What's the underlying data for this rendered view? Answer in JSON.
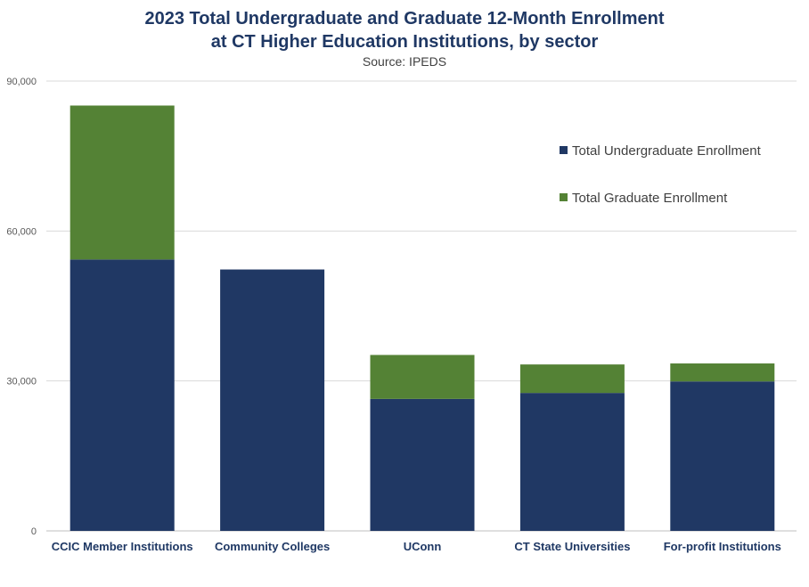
{
  "chart_data": {
    "type": "bar",
    "stacked": true,
    "title_lines": [
      "2023 Total Undergraduate and Graduate 12-Month Enrollment",
      "at CT Higher Education Institutions, by sector"
    ],
    "subtitle": "Source: IPEDS",
    "categories": [
      "CCIC Member Institutions",
      "Community Colleges",
      "UConn",
      "CT State Universities",
      "For-profit Institutions"
    ],
    "series": [
      {
        "name": "Total Undergraduate Enrollment",
        "color": "#203864",
        "values": [
          54300,
          52300,
          26400,
          27600,
          29900
        ]
      },
      {
        "name": "Total Graduate Enrollment",
        "color": "#548235",
        "values": [
          30800,
          0,
          8800,
          5700,
          3600
        ]
      }
    ],
    "ylim": [
      0,
      90000
    ],
    "yticks": [
      0,
      30000,
      60000,
      90000
    ],
    "ytick_labels": [
      "0",
      "30,000",
      "60,000",
      "90,000"
    ],
    "grid": true,
    "legend_position": "top-right"
  }
}
